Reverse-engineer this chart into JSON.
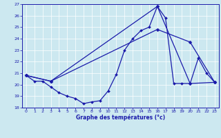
{
  "title": "Graphe des températures (°c)",
  "bg_color": "#cce8f0",
  "line_color": "#1a1aaa",
  "xlim": [
    -0.5,
    23.5
  ],
  "ylim": [
    18,
    27
  ],
  "xticks": [
    0,
    1,
    2,
    3,
    4,
    5,
    6,
    7,
    8,
    9,
    10,
    11,
    12,
    13,
    14,
    15,
    16,
    17,
    18,
    19,
    20,
    21,
    22,
    23
  ],
  "yticks": [
    18,
    19,
    20,
    21,
    22,
    23,
    24,
    25,
    26,
    27
  ],
  "series1_x": [
    0,
    1,
    2,
    3,
    4,
    5,
    6,
    7,
    8,
    9,
    10,
    11,
    12,
    13,
    14,
    15,
    16,
    17,
    18,
    19,
    20,
    21,
    22,
    23
  ],
  "series1_y": [
    20.8,
    20.3,
    20.3,
    19.8,
    19.3,
    19.0,
    18.8,
    18.35,
    18.5,
    18.6,
    19.45,
    20.9,
    23.0,
    24.0,
    24.7,
    25.0,
    26.8,
    25.8,
    20.1,
    20.1,
    20.1,
    22.3,
    21.0,
    20.2
  ],
  "series2_x": [
    0,
    3,
    16,
    20,
    23
  ],
  "series2_y": [
    20.8,
    20.3,
    26.8,
    20.1,
    20.2
  ],
  "series3_x": [
    0,
    3,
    16,
    20,
    23
  ],
  "series3_y": [
    20.8,
    20.3,
    24.8,
    23.7,
    20.2
  ]
}
